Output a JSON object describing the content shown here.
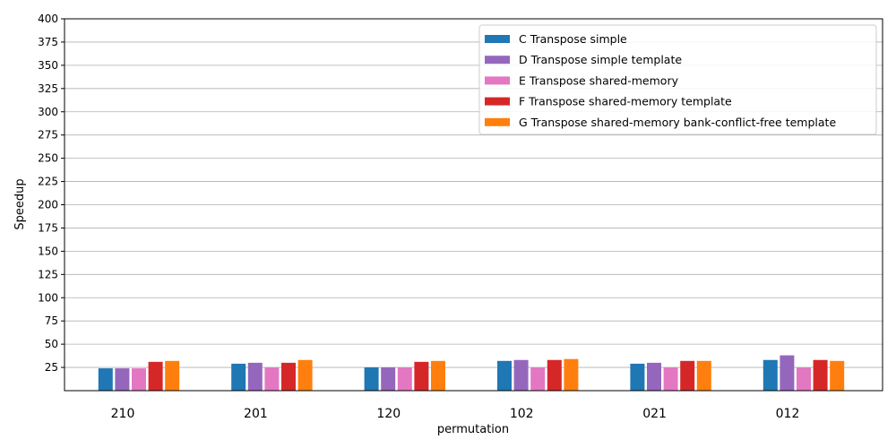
{
  "chart_data": {
    "type": "bar",
    "title": "",
    "xlabel": "permutation",
    "ylabel": "Speedup",
    "categories": [
      "210",
      "201",
      "120",
      "102",
      "021",
      "012"
    ],
    "ylim": [
      0,
      400
    ],
    "yticks": [
      25,
      50,
      75,
      100,
      125,
      150,
      175,
      200,
      225,
      250,
      275,
      300,
      325,
      350,
      375,
      400
    ],
    "grid": "y",
    "legend_position": "top-right",
    "series": [
      {
        "name": "C Transpose simple",
        "color": "#1f77b4",
        "values": [
          24,
          29,
          25,
          32,
          29,
          33
        ]
      },
      {
        "name": "D Transpose simple template",
        "color": "#9467bd",
        "values": [
          24,
          30,
          25,
          33,
          30,
          38
        ]
      },
      {
        "name": "E Transpose shared-memory",
        "color": "#e377c2",
        "values": [
          24,
          25,
          25,
          25,
          25,
          25
        ]
      },
      {
        "name": "F Transpose shared-memory template",
        "color": "#d62728",
        "values": [
          31,
          30,
          31,
          33,
          32,
          33
        ]
      },
      {
        "name": "G Transpose shared-memory bank-conflict-free template",
        "color": "#ff7f0e",
        "values": [
          32,
          33,
          32,
          34,
          32,
          32
        ]
      }
    ]
  }
}
